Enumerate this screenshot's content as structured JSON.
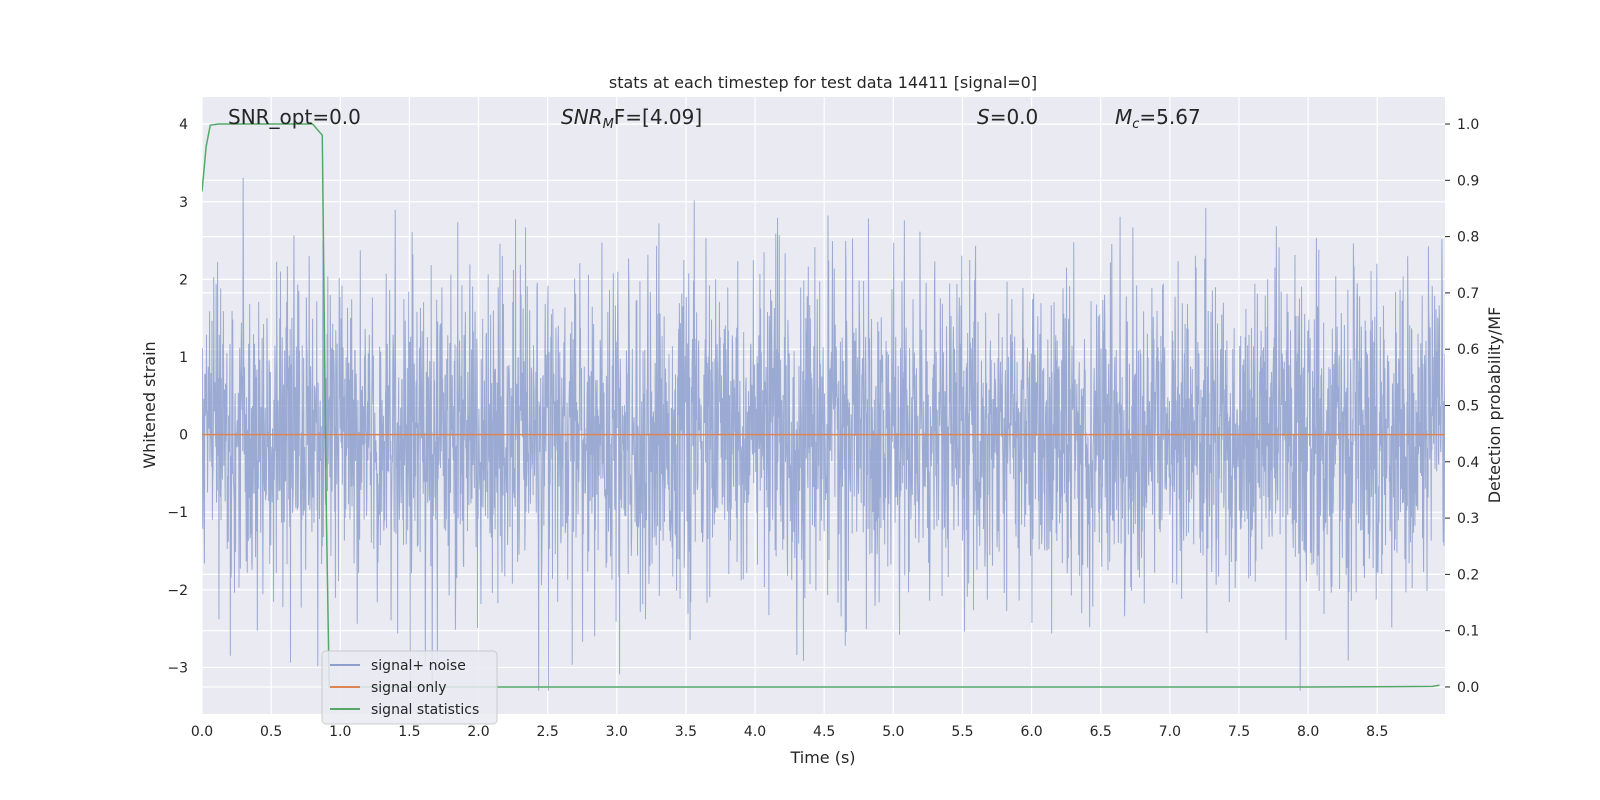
{
  "chart_data": {
    "type": "line",
    "title": "stats at each timestep for test data 14411 [signal=0]",
    "xlabel": "Time (s)",
    "ylabel": "Whitened strain",
    "ylabel_right": "Detection probability/MF",
    "xlim": [
      0.0,
      8.99
    ],
    "ylim": [
      -3.6,
      4.35
    ],
    "ylim_right": [
      -0.048,
      1.048
    ],
    "x_ticks": [
      "0.0",
      "0.5",
      "1.0",
      "1.5",
      "2.0",
      "2.5",
      "3.0",
      "3.5",
      "4.0",
      "4.5",
      "5.0",
      "5.5",
      "6.0",
      "6.5",
      "7.0",
      "7.5",
      "8.0",
      "8.5"
    ],
    "y_ticks": [
      "−3",
      "−2",
      "−1",
      "0",
      "1",
      "2",
      "3",
      "4"
    ],
    "y_ticks_right": [
      "0.0",
      "0.1",
      "0.2",
      "0.3",
      "0.4",
      "0.5",
      "0.6",
      "0.7",
      "0.8",
      "0.9",
      "1.0"
    ],
    "grid": true,
    "legend_position": "lower-left",
    "annotations": [
      {
        "id": "snr_opt",
        "text": "SNR_opt=0.0"
      },
      {
        "id": "snr_mf",
        "label": "SNR",
        "sub": "M",
        "rest": "F=[4.09]"
      },
      {
        "id": "s",
        "label": "S",
        "rest": "=0.0"
      },
      {
        "id": "mc",
        "label": "M",
        "sub": "c",
        "rest": "=5.67"
      }
    ],
    "series": [
      {
        "name": "signal+ noise",
        "color": "#8c9fcd",
        "axis": "left",
        "kind": "noise",
        "sample_rate": 400,
        "amplitude_std": 1.0
      },
      {
        "name": "signal only",
        "color": "#dd8452",
        "axis": "left",
        "x": [
          0.0,
          8.99
        ],
        "y": [
          0.0,
          0.0
        ]
      },
      {
        "name": "signal statistics",
        "color": "#55a868",
        "axis": "right",
        "x": [
          0.0,
          0.03,
          0.06,
          0.12,
          0.2,
          0.5,
          0.8,
          0.87,
          0.88,
          0.9,
          0.92,
          1.05,
          2.0,
          4.0,
          6.0,
          8.0,
          8.9,
          8.95
        ],
        "y": [
          0.88,
          0.96,
          0.998,
          1.0,
          1.0,
          1.0,
          1.0,
          0.98,
          0.75,
          0.3,
          0.0,
          0.0,
          0.0,
          0.0,
          0.0,
          0.0,
          0.001,
          0.003
        ]
      }
    ]
  }
}
